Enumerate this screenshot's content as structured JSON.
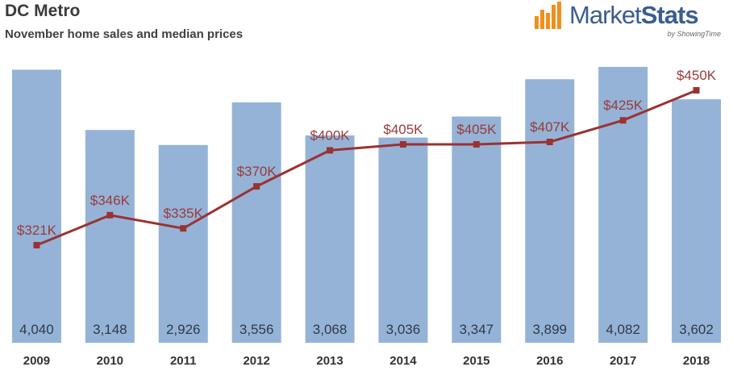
{
  "header": {
    "title": "DC Metro",
    "subtitle": "November home sales and median prices"
  },
  "logo": {
    "name_light": "Market",
    "name_bold": "Stats",
    "byline": "by ShowingTime",
    "icon": "bar-chart-logo-icon",
    "colors": {
      "text": "#3b5d8f",
      "bars": "#f28e1c"
    }
  },
  "colors": {
    "bars": "#95b3d7",
    "line": "#9b3232",
    "price_labels": "#9a3a3a"
  },
  "chart_data": {
    "type": "bar",
    "title": "DC Metro",
    "subtitle": "November home sales and median prices",
    "categories": [
      "2009",
      "2010",
      "2011",
      "2012",
      "2013",
      "2014",
      "2015",
      "2016",
      "2017",
      "2018"
    ],
    "series": [
      {
        "name": "",
        "type": "bar",
        "axis": "primary",
        "values": [
          4040,
          3148,
          2926,
          3556,
          3068,
          3036,
          3347,
          3899,
          4082,
          3602
        ],
        "labels": [
          "4,040",
          "3,148",
          "2,926",
          "3,556",
          "3,068",
          "3,036",
          "3,347",
          "3,899",
          "4,082",
          "3,602"
        ]
      },
      {
        "name": "",
        "type": "line",
        "axis": "secondary",
        "values": [
          321,
          346,
          335,
          370,
          400,
          405,
          405,
          407,
          425,
          450
        ],
        "labels": [
          "$321K",
          "$346K",
          "$335K",
          "$370K",
          "$400K",
          "$405K",
          "$405K",
          "$407K",
          "$425K",
          "$450K"
        ]
      }
    ],
    "ylim": [
      0,
      4200
    ],
    "y2lim": [
      220,
      470
    ],
    "xlabel": "",
    "ylabel": "",
    "grid": false,
    "legend": "none"
  }
}
